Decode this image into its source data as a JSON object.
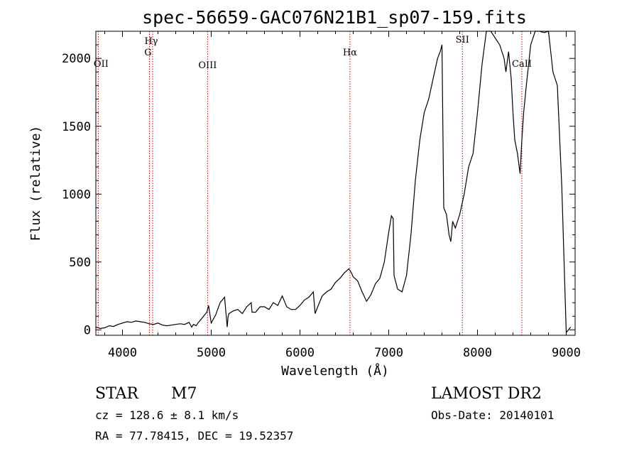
{
  "chart_data": {
    "type": "line",
    "title": "spec-56659-GAC076N21B1_sp07-159.fits",
    "xlabel": "Wavelength (Å)",
    "ylabel": "Flux (relative)",
    "xlim": [
      3700,
      9100
    ],
    "ylim": [
      -40,
      2200
    ],
    "x_ticks": [
      4000,
      5000,
      6000,
      7000,
      8000,
      9000
    ],
    "y_ticks": [
      0,
      500,
      1000,
      1500,
      2000
    ],
    "grid": false,
    "series": [
      {
        "x": [
          3700,
          3750,
          3800,
          3850,
          3900,
          3950,
          4000,
          4050,
          4100,
          4150,
          4200,
          4250,
          4300,
          4350,
          4400,
          4450,
          4500,
          4550,
          4600,
          4650,
          4700,
          4750,
          4780,
          4800,
          4830,
          4850,
          4900,
          4950,
          4970,
          5000,
          5050,
          5100,
          5150,
          5180,
          5190,
          5200,
          5250,
          5300,
          5350,
          5400,
          5450,
          5460,
          5500,
          5550,
          5600,
          5650,
          5700,
          5750,
          5800,
          5850,
          5900,
          5950,
          6000,
          6050,
          6100,
          6150,
          6170,
          6200,
          6250,
          6300,
          6350,
          6400,
          6450,
          6500,
          6550,
          6580,
          6600,
          6650,
          6700,
          6750,
          6800,
          6850,
          6900,
          6950,
          7000,
          7030,
          7050,
          7060,
          7100,
          7150,
          7200,
          7250,
          7300,
          7350,
          7400,
          7450,
          7500,
          7550,
          7580,
          7600,
          7620,
          7650,
          7680,
          7700,
          7720,
          7750,
          7800,
          7850,
          7900,
          7950,
          8000,
          8050,
          8100,
          8150,
          8200,
          8250,
          8300,
          8320,
          8350,
          8380,
          8400,
          8420,
          8450,
          8480,
          8500,
          8520,
          8550,
          8600,
          8650,
          8700,
          8750,
          8800,
          8850,
          8900,
          8950,
          9000,
          9050
        ],
        "y": [
          20,
          10,
          15,
          30,
          25,
          40,
          50,
          60,
          55,
          65,
          60,
          55,
          45,
          40,
          50,
          35,
          30,
          35,
          40,
          45,
          40,
          55,
          20,
          40,
          30,
          50,
          90,
          130,
          180,
          50,
          110,
          200,
          240,
          20,
          100,
          120,
          140,
          150,
          120,
          170,
          200,
          130,
          130,
          170,
          170,
          150,
          200,
          180,
          250,
          170,
          150,
          150,
          180,
          220,
          240,
          280,
          120,
          170,
          250,
          280,
          300,
          350,
          380,
          420,
          450,
          420,
          390,
          360,
          280,
          210,
          260,
          340,
          380,
          500,
          720,
          840,
          820,
          400,
          300,
          280,
          400,
          700,
          1100,
          1400,
          1600,
          1700,
          1850,
          2000,
          2050,
          2100,
          900,
          850,
          700,
          650,
          800,
          750,
          850,
          1000,
          1200,
          1300,
          1600,
          1950,
          2200,
          2200,
          2150,
          2100,
          2000,
          1900,
          2050,
          1850,
          1600,
          1400,
          1300,
          1150,
          1400,
          1600,
          1800,
          2100,
          2200,
          2200,
          2190,
          2200,
          1900,
          1800,
          1050,
          -20,
          20
        ]
      }
    ],
    "vlines": [
      {
        "label": "OII",
        "x": 3727
      },
      {
        "label": "Hγ",
        "x": 4340
      },
      {
        "label": "G",
        "x": 4304
      },
      {
        "label": "OIII",
        "x": 4959
      },
      {
        "label": "Hα",
        "x": 6563
      },
      {
        "label": "SII",
        "x": 7830
      },
      {
        "label": "CaII",
        "x": 8500
      }
    ]
  },
  "info": {
    "classification_label": "STAR",
    "subclass": "M7",
    "cz": "cz = 128.6 ± 8.1 km/s",
    "coords": "RA =  77.78415, DEC =  19.52357",
    "survey": "LAMOST DR2",
    "obs_date": "Obs-Date: 20140101"
  },
  "colors": {
    "spectrum": "#000000",
    "line_markers": "#cc0000",
    "axes": "#000000",
    "background": "#ffffff"
  }
}
